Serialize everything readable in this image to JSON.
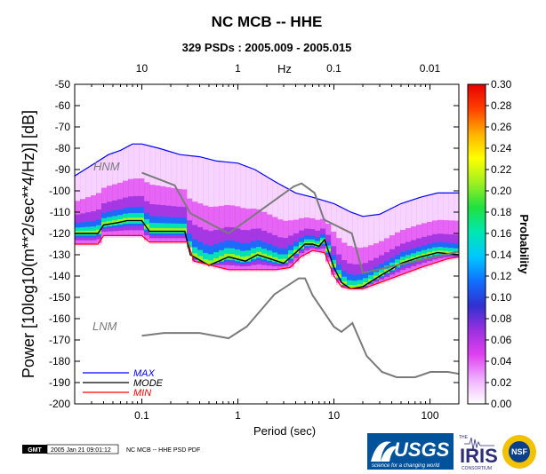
{
  "chart_data": {
    "type": "line",
    "title": "NC MCB -- HHE",
    "subtitle": "329 PSDs : 2005.009 - 2005.015",
    "xlabel": "Period (sec)",
    "ylabel": "Power [10log10(m**2/sec**4/Hz)] [dB]",
    "x_scale": "log",
    "xlim": [
      0.02,
      200
    ],
    "ylim": [
      -200,
      -50
    ],
    "x_ticks": [
      0.1,
      1,
      10,
      100
    ],
    "x_tick_labels": [
      "0.1",
      "1",
      "10",
      "100"
    ],
    "y_ticks": [
      -200,
      -190,
      -180,
      -170,
      -160,
      -150,
      -140,
      -130,
      -120,
      -110,
      -100,
      -90,
      -80,
      -70,
      -60,
      -50
    ],
    "y_tick_labels": [
      "-200",
      "-190",
      "-180",
      "-170",
      "-160",
      "-150",
      "-140",
      "-130",
      "-120",
      "-110",
      "-100",
      "-90",
      "-80",
      "-70",
      "-60",
      "-50"
    ],
    "top_axis": {
      "label": "Hz",
      "ticks": [
        10,
        1,
        0.1,
        0.01
      ],
      "tick_labels": [
        "10",
        "1",
        "0.1",
        "0.01"
      ]
    },
    "colorbar": {
      "label": "Probability",
      "range": [
        0,
        0.3
      ],
      "ticks": [
        0.0,
        0.02,
        0.04,
        0.06,
        0.08,
        0.1,
        0.12,
        0.14,
        0.16,
        0.18,
        0.2,
        0.22,
        0.24,
        0.26,
        0.28,
        0.3
      ],
      "tick_labels": [
        "0.00",
        "0.02",
        "0.04",
        "0.06",
        "0.08",
        "0.10",
        "0.12",
        "0.14",
        "0.16",
        "0.18",
        "0.20",
        "0.22",
        "0.24",
        "0.26",
        "0.28",
        "0.30"
      ],
      "colors": [
        "#ffffff",
        "#f0b0ff",
        "#e040f0",
        "#9a30e0",
        "#3030d0",
        "#1070ff",
        "#00c8ff",
        "#00e8b0",
        "#20e040",
        "#a0f020",
        "#ffff00",
        "#ffb000",
        "#ff4000",
        "#e80000"
      ]
    },
    "legend": {
      "placement": "bottom-left",
      "entries": [
        {
          "label": "MAX",
          "color": "#0000ff"
        },
        {
          "label": "MODE",
          "color": "#000000"
        },
        {
          "label": "MIN",
          "color": "#ff0000"
        }
      ]
    },
    "reference_labels": {
      "upper": "HNM",
      "lower": "LNM"
    },
    "series": [
      {
        "name": "MAX",
        "color": "#0000ff",
        "x": [
          0.02,
          0.03,
          0.045,
          0.06,
          0.08,
          0.1,
          0.15,
          0.25,
          0.4,
          0.6,
          1.0,
          1.5,
          2.5,
          4,
          6,
          10,
          15,
          20,
          30,
          50,
          80,
          120,
          200
        ],
        "y": [
          -93,
          -88,
          -83,
          -81,
          -78,
          -78,
          -80,
          -83,
          -84,
          -86,
          -87,
          -90,
          -96,
          -101,
          -103,
          -106,
          -110,
          -112,
          -111,
          -106,
          -103,
          -101,
          -101
        ]
      },
      {
        "name": "MODE",
        "color": "#000000",
        "x": [
          0.02,
          0.035,
          0.04,
          0.055,
          0.07,
          0.1,
          0.12,
          0.2,
          0.28,
          0.32,
          0.5,
          0.8,
          1.2,
          1.6,
          2.2,
          3,
          4,
          5,
          6,
          7,
          8,
          10,
          12,
          15,
          20,
          30,
          50,
          80,
          120,
          200
        ],
        "y": [
          -120,
          -120,
          -116,
          -115,
          -114,
          -114,
          -119,
          -119,
          -119,
          -130,
          -135,
          -131,
          -133,
          -130,
          -132,
          -134,
          -129,
          -125,
          -125,
          -126,
          -123,
          -136,
          -143,
          -146,
          -145,
          -140,
          -134,
          -131,
          -129,
          -130
        ]
      },
      {
        "name": "MIN",
        "color": "#ff0000",
        "x": [
          0.02,
          0.035,
          0.04,
          0.07,
          0.1,
          0.12,
          0.3,
          0.35,
          0.8,
          1.5,
          2.5,
          3.5,
          4.5,
          6,
          8,
          10,
          12,
          15,
          20,
          40,
          80,
          150,
          200
        ],
        "y": [
          -125,
          -125,
          -121,
          -121,
          -121,
          -124,
          -124,
          -133,
          -137,
          -137,
          -137,
          -136,
          -131,
          -128,
          -129,
          -140,
          -145,
          -146,
          -146,
          -141,
          -136,
          -132,
          -131
        ]
      },
      {
        "name": "HNM",
        "color": "#7a7a7a",
        "x": [
          0.1,
          0.22,
          0.32,
          0.8,
          3.8,
          4.6,
          6.3,
          7.9,
          15.4,
          20,
          354.8
        ],
        "y": [
          -91.5,
          -97.4,
          -110.5,
          -120,
          -98,
          -96.5,
          -101,
          -113.5,
          -120,
          -138.5,
          -126
        ]
      },
      {
        "name": "LNM",
        "color": "#7a7a7a",
        "x": [
          0.1,
          0.17,
          0.4,
          0.8,
          1.24,
          2.4,
          4.3,
          5,
          6,
          10,
          12,
          15.6,
          21.9,
          31.6,
          45,
          70,
          101,
          154,
          328
        ],
        "y": [
          -168,
          -166.7,
          -166.7,
          -169.2,
          -163.7,
          -148.6,
          -141.1,
          -141.1,
          -149,
          -163.8,
          -166.2,
          -162.1,
          -177.5,
          -185,
          -187.5,
          -187.5,
          -185,
          -185,
          -187.5
        ]
      }
    ]
  },
  "footer": {
    "gmt_badge": "GMT",
    "timestamp": "2005 Jan 21 09:01:12",
    "caption": "NC MCB -- HHE PSD PDF"
  },
  "logos": {
    "usgs_text": "USGS",
    "usgs_tagline": "science for a changing world",
    "iris_text": "IRIS",
    "iris_small_top": "THE",
    "iris_small_bottom": "CONSORTIUM",
    "nsf_text": "NSF"
  }
}
